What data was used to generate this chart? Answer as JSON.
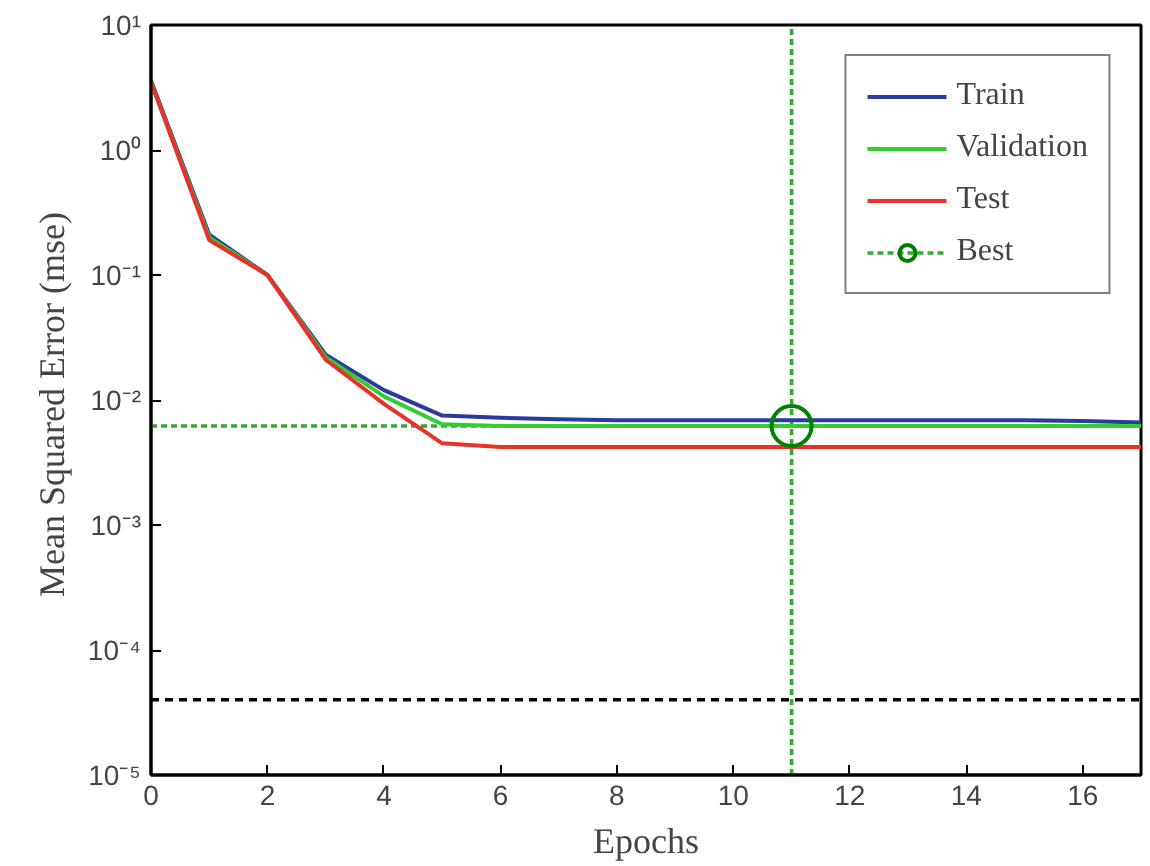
{
  "chart_data": {
    "type": "line",
    "xlabel": "Epochs",
    "ylabel": "Mean Squared Error  (mse)",
    "x": [
      0,
      1,
      2,
      3,
      4,
      5,
      6,
      7,
      8,
      9,
      10,
      11,
      12,
      13,
      14,
      15,
      16,
      17
    ],
    "series": [
      {
        "name": "Train",
        "color": "#2b3a9e",
        "values": [
          3.6,
          0.21,
          0.1,
          0.023,
          0.012,
          0.0075,
          0.0072,
          0.007,
          0.0069,
          0.0069,
          0.0069,
          0.0069,
          0.0069,
          0.0069,
          0.0069,
          0.0069,
          0.0068,
          0.0066
        ]
      },
      {
        "name": "Validation",
        "color": "#33cc33",
        "values": [
          3.5,
          0.2,
          0.1,
          0.022,
          0.0107,
          0.0064,
          0.0062,
          0.0062,
          0.0062,
          0.0062,
          0.0062,
          0.0062,
          0.0062,
          0.0062,
          0.0062,
          0.0062,
          0.0062,
          0.0062
        ]
      },
      {
        "name": "Test",
        "color": "#e8312a",
        "values": [
          3.5,
          0.19,
          0.1,
          0.021,
          0.0093,
          0.0045,
          0.0042,
          0.0042,
          0.0042,
          0.0042,
          0.0042,
          0.0042,
          0.0042,
          0.0042,
          0.0042,
          0.0042,
          0.0042,
          0.0042
        ]
      },
      {
        "name": "Best",
        "type": "scatter",
        "marker": "circle",
        "color": "#008000",
        "x": [
          11
        ],
        "values": [
          0.0062
        ]
      }
    ],
    "ref_lines": [
      {
        "axis": "x",
        "value": 11,
        "color": "#33aa33",
        "line_style": "dotted"
      },
      {
        "axis": "y",
        "value": 0.0062,
        "color": "#33aa33",
        "line_style": "dotted"
      },
      {
        "axis": "y",
        "value": 4e-05,
        "color": "#000000",
        "line_style": "dashed"
      }
    ],
    "log": "y",
    "xlim": [
      0,
      17
    ],
    "ylim": [
      1e-05,
      10
    ],
    "xticks": [
      0,
      2,
      4,
      6,
      8,
      10,
      12,
      14,
      16
    ],
    "yticks": [
      {
        "value": 1e-05,
        "label": "10⁻⁵"
      },
      {
        "value": 0.0001,
        "label": "10⁻⁴"
      },
      {
        "value": 0.001,
        "label": "10⁻³"
      },
      {
        "value": 0.01,
        "label": "10⁻²"
      },
      {
        "value": 0.1,
        "label": "10⁻¹"
      },
      {
        "value": 1,
        "label": "10⁰"
      },
      {
        "value": 10,
        "label": "10¹"
      }
    ],
    "grid": false,
    "legend": "top right",
    "marker": "none",
    "line_style": "solid"
  }
}
